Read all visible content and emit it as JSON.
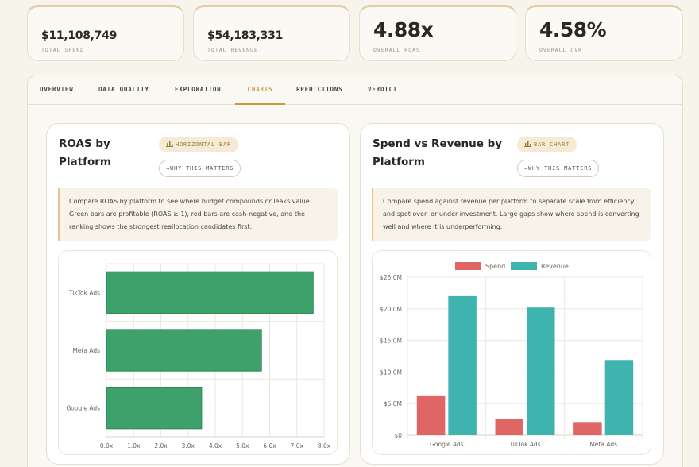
{
  "kpis": [
    {
      "value": "$11,108,749",
      "label": "TOTAL SPEND"
    },
    {
      "value": "$54,183,331",
      "label": "TOTAL REVENUE"
    },
    {
      "value": "4.88x",
      "label": "OVERALL ROAS"
    },
    {
      "value": "4.58%",
      "label": "OVERALL CVR"
    }
  ],
  "tabs": [
    {
      "label": "OVERVIEW"
    },
    {
      "label": "DATA QUALITY"
    },
    {
      "label": "EXPLORATION"
    },
    {
      "label": "CHARTS",
      "active": true
    },
    {
      "label": "PREDICTIONS"
    },
    {
      "label": "VERDICT"
    }
  ],
  "cards": [
    {
      "title_line1": "ROAS by",
      "title_line2": "Platform",
      "chip_icon": "bar-chart-icon",
      "chip_label": "HORIZONTAL BAR",
      "why_label": "→WHY THIS MATTERS",
      "description": "Compare ROAS by platform to see where budget compounds or leaks value. Green bars are profitable (ROAS ≥ 1), red bars are cash-negative, and the ranking shows the strongest reallocation candidates first."
    },
    {
      "title_line1": "Spend vs Revenue by",
      "title_line2": "Platform",
      "chip_icon": "bar-chart-icon",
      "chip_label": "BAR CHART",
      "why_label": "→WHY THIS MATTERS",
      "description": "Compare spend against revenue per platform to separate scale from efficiency and spot over- or under-investment. Large gaps show where spend is converting well and where it is underperforming."
    }
  ],
  "chart_data": [
    {
      "type": "bar",
      "orientation": "horizontal",
      "categories": [
        "TikTok Ads",
        "Meta Ads",
        "Google Ads"
      ],
      "values": [
        7.6,
        5.7,
        3.5
      ],
      "xlim": [
        0,
        8
      ],
      "xticks": [
        "0.0x",
        "1.0x",
        "2.0x",
        "3.0x",
        "4.0x",
        "5.0x",
        "6.0x",
        "7.0x",
        "8.0x"
      ],
      "grid": true,
      "color": "#3ea06b"
    },
    {
      "type": "bar",
      "categories": [
        "Google Ads",
        "TikTok Ads",
        "Meta Ads"
      ],
      "series": [
        {
          "name": "Spend",
          "values": [
            6.3,
            2.6,
            2.1
          ],
          "color": "#e06666"
        },
        {
          "name": "Revenue",
          "values": [
            22.0,
            20.2,
            11.9
          ],
          "color": "#3fb3ae"
        }
      ],
      "unit": "M",
      "ylim": [
        0,
        25
      ],
      "yticks": [
        "$0",
        "$5.0M",
        "$10.0M",
        "$15.0M",
        "$20.0M",
        "$25.0M"
      ],
      "legend": "top",
      "grid": true
    }
  ]
}
